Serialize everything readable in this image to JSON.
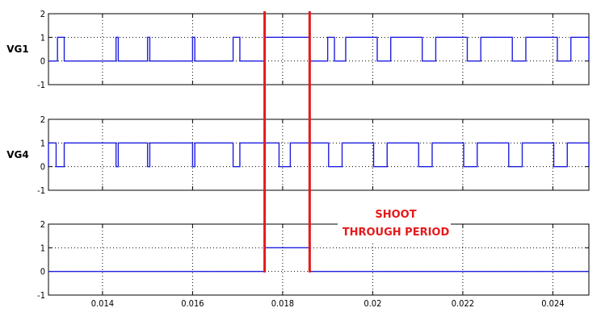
{
  "colors": {
    "signal": "#1f1fe0",
    "marker": "#e41a1c",
    "axis": "#000000",
    "grid": "#000000",
    "background": "#ffffff"
  },
  "chart_data": {
    "type": "line",
    "x_range": [
      0.0128,
      0.0248
    ],
    "x_ticks": [
      0.014,
      0.016,
      0.018,
      0.02,
      0.022,
      0.024
    ],
    "x_tick_labels": [
      "0.014",
      "0.016",
      "0.018",
      "0.02",
      "0.022",
      "0.024"
    ],
    "grid": true,
    "markers": [
      0.0176,
      0.0186
    ],
    "panels": [
      {
        "ylabel": "VG1",
        "ylim": [
          -1,
          2
        ],
        "y_ticks": [
          -1,
          0,
          1,
          2
        ],
        "y_tick_labels": [
          "-1",
          "0",
          "1",
          "2"
        ],
        "high_intervals": [
          [
            0.013,
            0.01315
          ],
          [
            0.0143,
            0.01435
          ],
          [
            0.015,
            0.01505
          ],
          [
            0.016,
            0.01605
          ],
          [
            0.0169,
            0.01705
          ],
          [
            0.0176,
            0.0186
          ],
          [
            0.019,
            0.01915
          ],
          [
            0.0194,
            0.0201
          ],
          [
            0.0204,
            0.0211
          ],
          [
            0.0214,
            0.0221
          ],
          [
            0.0224,
            0.0231
          ],
          [
            0.0234,
            0.0241
          ],
          [
            0.0244,
            0.0248
          ]
        ]
      },
      {
        "ylabel": "VG4",
        "ylim": [
          -1,
          2
        ],
        "y_ticks": [
          -1,
          0,
          1,
          2
        ],
        "y_tick_labels": [
          "-1",
          "0",
          "1",
          "2"
        ],
        "high_intervals": [
          [
            0.0128,
            0.01297
          ],
          [
            0.01315,
            0.0143
          ],
          [
            0.01435,
            0.015
          ],
          [
            0.01505,
            0.016
          ],
          [
            0.01605,
            0.0169
          ],
          [
            0.01705,
            0.01792
          ],
          [
            0.01817,
            0.01902
          ],
          [
            0.01932,
            0.02002
          ],
          [
            0.02032,
            0.02102
          ],
          [
            0.02132,
            0.02202
          ],
          [
            0.02232,
            0.02302
          ],
          [
            0.02332,
            0.02402
          ],
          [
            0.02432,
            0.0248
          ]
        ]
      },
      {
        "ylabel": "",
        "ylim": [
          -1,
          2
        ],
        "y_ticks": [
          -1,
          0,
          1,
          2
        ],
        "y_tick_labels": [
          "-1",
          "0",
          "1",
          "2"
        ],
        "high_intervals": [
          [
            0.0176,
            0.0186
          ]
        ]
      }
    ],
    "annotation": {
      "lines": [
        "SHOOT",
        "THROUGH PERIOD"
      ]
    }
  }
}
